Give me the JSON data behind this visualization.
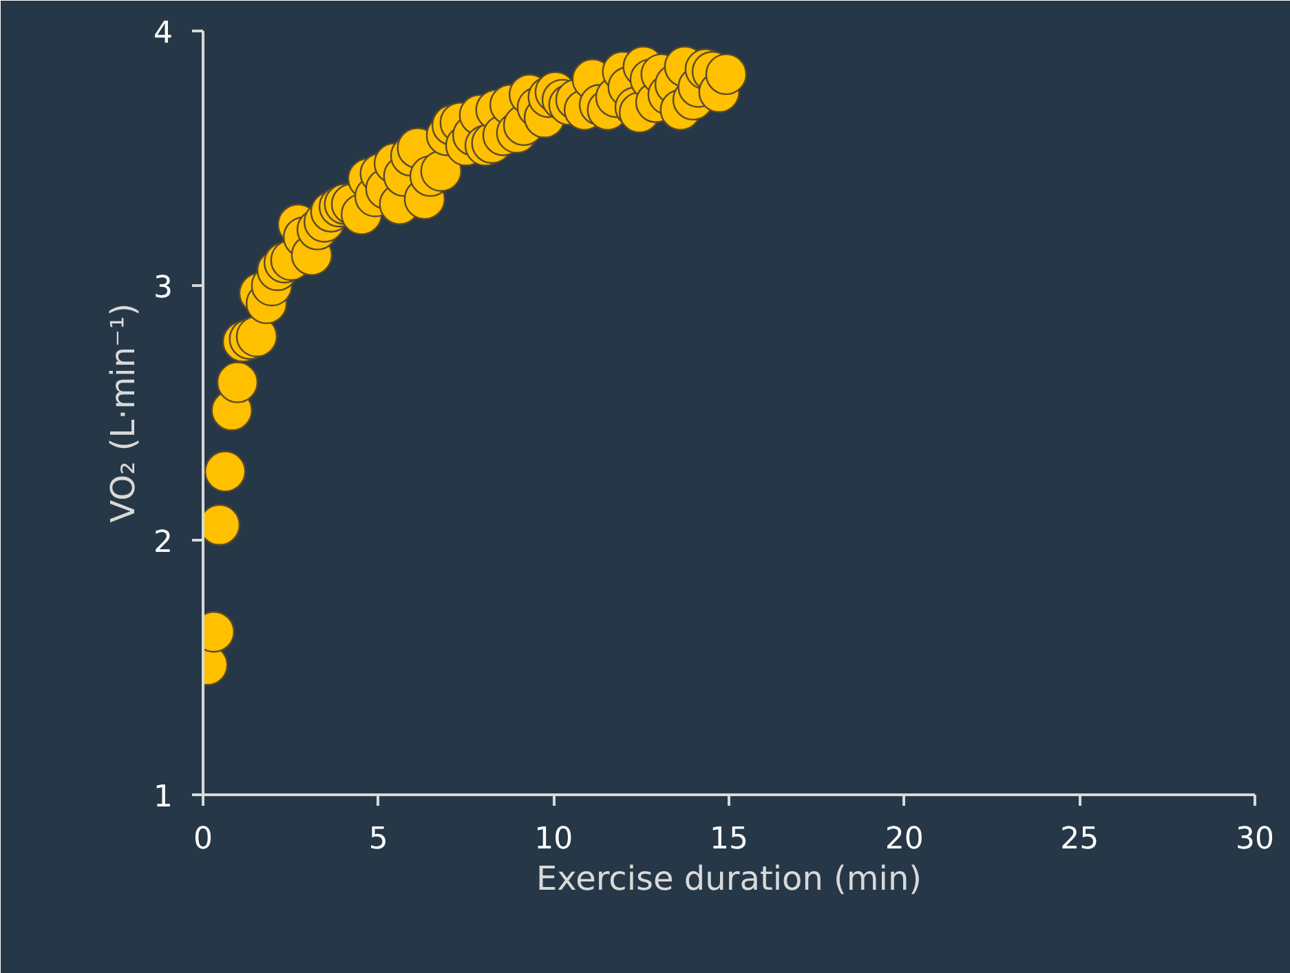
{
  "chart_data": {
    "type": "scatter",
    "xlabel": "Exercise duration (min)",
    "ylabel": "VO₂ (L·min⁻¹)",
    "color": "#ffc000",
    "marker": "circle",
    "grid": false,
    "xlim": [
      0,
      30
    ],
    "ylim": [
      1,
      4
    ],
    "xticks": [
      0,
      5,
      10,
      15,
      20,
      25,
      30
    ],
    "yticks": [
      1,
      2,
      3,
      4
    ],
    "x": [
      0.12,
      0.31,
      0.47,
      0.63,
      0.82,
      0.98,
      1.14,
      1.33,
      1.53,
      1.61,
      1.81,
      1.96,
      2.12,
      2.32,
      2.51,
      2.71,
      2.87,
      3.1,
      3.26,
      3.46,
      3.65,
      3.89,
      4.04,
      4.24,
      4.52,
      4.71,
      4.91,
      5.06,
      5.22,
      5.46,
      5.61,
      5.73,
      5.93,
      6.12,
      6.32,
      6.48,
      6.79,
      6.95,
      7.11,
      7.34,
      7.5,
      7.7,
      7.89,
      8.05,
      8.24,
      8.36,
      8.56,
      8.76,
      8.95,
      9.15,
      9.31,
      9.54,
      9.74,
      9.85,
      10.05,
      10.25,
      10.44,
      10.64,
      10.88,
      11.11,
      11.31,
      11.54,
      11.78,
      11.97,
      12.13,
      12.33,
      12.45,
      12.56,
      12.76,
      12.92,
      13.07,
      13.27,
      13.47,
      13.62,
      13.74,
      13.98,
      14.13,
      14.33,
      14.53,
      14.72,
      14.92
    ],
    "values": [
      1.51,
      1.64,
      2.06,
      2.27,
      2.51,
      2.62,
      2.78,
      2.79,
      2.8,
      2.97,
      2.93,
      3.0,
      3.06,
      3.09,
      3.1,
      3.24,
      3.19,
      3.12,
      3.22,
      3.25,
      3.29,
      3.31,
      3.32,
      3.32,
      3.28,
      3.42,
      3.35,
      3.44,
      3.38,
      3.48,
      3.32,
      3.43,
      3.51,
      3.54,
      3.34,
      3.43,
      3.45,
      3.59,
      3.63,
      3.64,
      3.55,
      3.59,
      3.67,
      3.55,
      3.56,
      3.69,
      3.59,
      3.71,
      3.6,
      3.63,
      3.75,
      3.7,
      3.66,
      3.74,
      3.76,
      3.73,
      3.71,
      3.73,
      3.69,
      3.81,
      3.71,
      3.69,
      3.74,
      3.84,
      3.78,
      3.7,
      3.68,
      3.86,
      3.81,
      3.72,
      3.83,
      3.75,
      3.79,
      3.69,
      3.86,
      3.73,
      3.78,
      3.85,
      3.84,
      3.76,
      3.83
    ]
  }
}
